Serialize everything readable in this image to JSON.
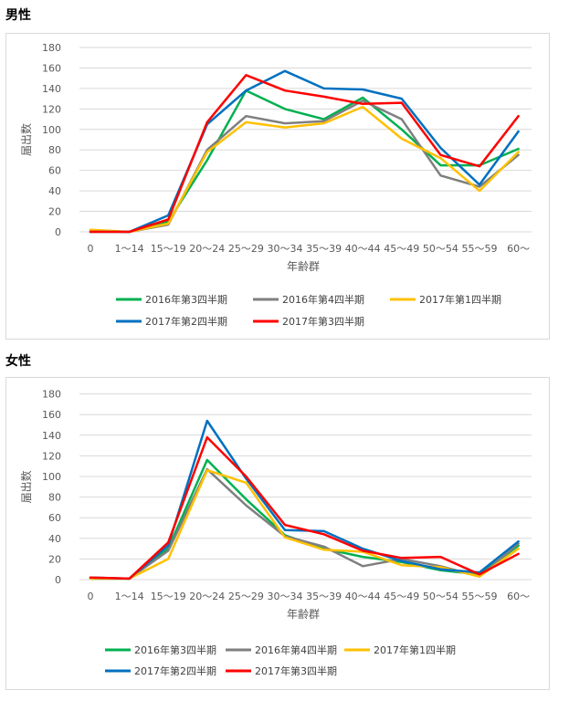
{
  "sections": [
    {
      "title": "男性"
    },
    {
      "title": "女性"
    }
  ],
  "chart_data": [
    {
      "type": "line",
      "ylabel": "届出数",
      "xlabel": "年齢群",
      "ylim": [
        0,
        180
      ],
      "yticks": [
        0,
        20,
        40,
        60,
        80,
        100,
        120,
        140,
        160,
        180
      ],
      "grid": true,
      "legend": "bottom",
      "categories": [
        "0",
        "1～14",
        "15～19",
        "20～24",
        "25～29",
        "30～34",
        "35～39",
        "40～44",
        "45～49",
        "50～54",
        "55～59",
        "60～"
      ],
      "series": [
        {
          "name": "2016年第3四半期",
          "color": "#00b050",
          "values": [
            1,
            0,
            10,
            70,
            138,
            120,
            110,
            131,
            100,
            65,
            65,
            81
          ]
        },
        {
          "name": "2016年第4四半期",
          "color": "#7f7f7f",
          "values": [
            1,
            0,
            7,
            80,
            113,
            106,
            108,
            128,
            110,
            55,
            44,
            75
          ]
        },
        {
          "name": "2017年第1四半期",
          "color": "#ffc000",
          "values": [
            2,
            0,
            8,
            78,
            107,
            102,
            106,
            122,
            91,
            72,
            40,
            78
          ]
        },
        {
          "name": "2017年第2四半期",
          "color": "#0070c0",
          "values": [
            0,
            0,
            16,
            105,
            138,
            157,
            140,
            139,
            130,
            82,
            46,
            98
          ]
        },
        {
          "name": "2017年第3四半期",
          "color": "#ff0000",
          "values": [
            0,
            0,
            12,
            107,
            153,
            138,
            132,
            125,
            126,
            75,
            64,
            113
          ]
        }
      ]
    },
    {
      "type": "line",
      "ylabel": "届出数",
      "xlabel": "年齢群",
      "ylim": [
        0,
        180
      ],
      "yticks": [
        0,
        20,
        40,
        60,
        80,
        100,
        120,
        140,
        160,
        180
      ],
      "grid": true,
      "legend": "bottom",
      "categories": [
        "0",
        "1～14",
        "15～19",
        "20～24",
        "25～29",
        "30～34",
        "35～39",
        "40～44",
        "45～49",
        "50～54",
        "55～59",
        "60～"
      ],
      "series": [
        {
          "name": "2016年第3四半期",
          "color": "#00b050",
          "values": [
            1,
            1,
            30,
            116,
            78,
            43,
            30,
            22,
            17,
            9,
            5,
            33
          ]
        },
        {
          "name": "2016年第4四半期",
          "color": "#7f7f7f",
          "values": [
            1,
            1,
            28,
            107,
            72,
            42,
            32,
            13,
            20,
            13,
            3,
            35
          ]
        },
        {
          "name": "2017年第1四半期",
          "color": "#ffc000",
          "values": [
            1,
            1,
            20,
            106,
            94,
            41,
            29,
            27,
            14,
            12,
            3,
            30
          ]
        },
        {
          "name": "2017年第2四半期",
          "color": "#0070c0",
          "values": [
            2,
            1,
            33,
            154,
            98,
            48,
            47,
            30,
            18,
            10,
            7,
            37
          ]
        },
        {
          "name": "2017年第3四半期",
          "color": "#ff0000",
          "values": [
            2,
            1,
            36,
            138,
            100,
            53,
            44,
            28,
            21,
            22,
            5,
            25
          ]
        }
      ]
    }
  ]
}
